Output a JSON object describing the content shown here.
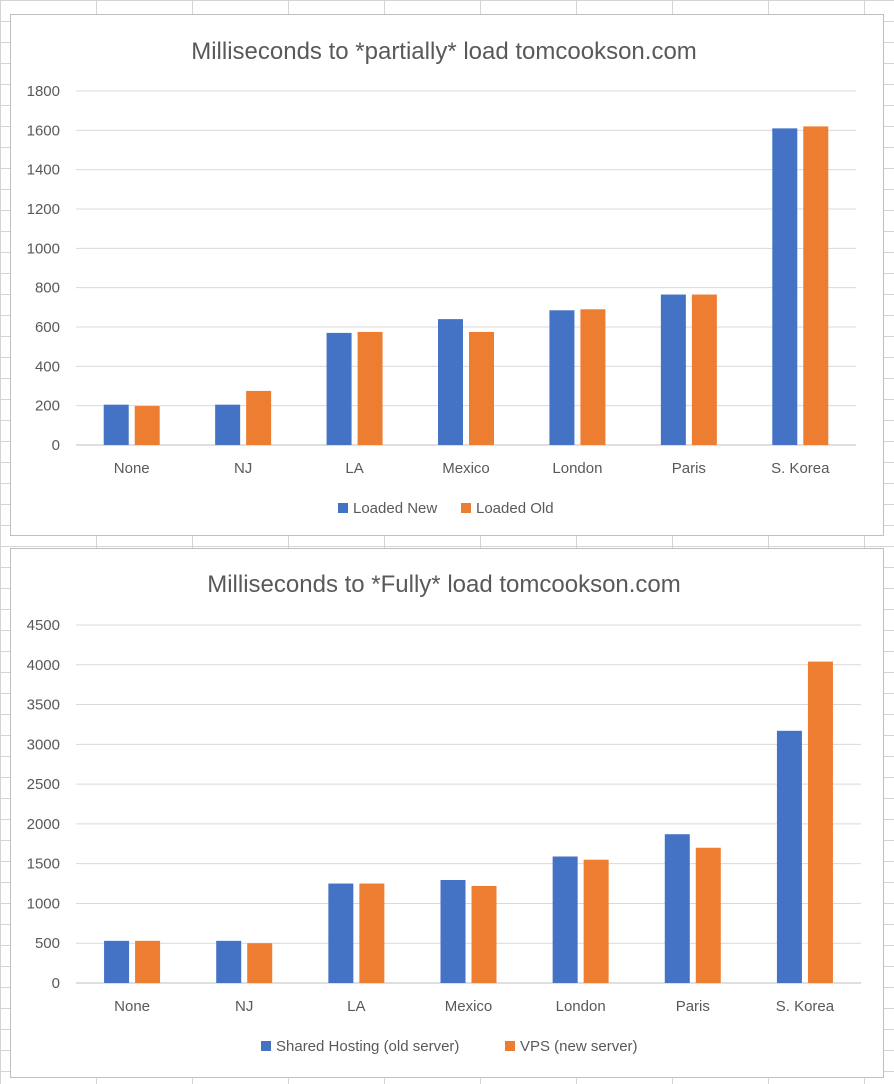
{
  "chart_data": [
    {
      "type": "bar",
      "title": "Milliseconds to *partially* load tomcookson.com",
      "categories": [
        "None",
        "NJ",
        "LA",
        "Mexico",
        "London",
        "Paris",
        "S. Korea"
      ],
      "series": [
        {
          "name": "Loaded New",
          "color": "#4472C4",
          "values": [
            205,
            205,
            570,
            640,
            685,
            765,
            1610
          ]
        },
        {
          "name": "Loaded Old",
          "color": "#ED7D31",
          "values": [
            198,
            275,
            575,
            575,
            690,
            765,
            1620
          ]
        }
      ],
      "ylim": [
        0,
        1800
      ],
      "yticks": [
        0,
        200,
        400,
        600,
        800,
        1000,
        1200,
        1400,
        1600,
        1800
      ],
      "grid": true,
      "legend": "bottom",
      "xlabel": "",
      "ylabel": ""
    },
    {
      "type": "bar",
      "title": "Milliseconds to *Fully* load tomcookson.com",
      "categories": [
        "None",
        "NJ",
        "LA",
        "Mexico",
        "London",
        "Paris",
        "S. Korea"
      ],
      "series": [
        {
          "name": "Shared Hosting (old server)",
          "color": "#4472C4",
          "values": [
            530,
            530,
            1250,
            1295,
            1590,
            1870,
            3170
          ]
        },
        {
          "name": "VPS (new server)",
          "color": "#ED7D31",
          "values": [
            530,
            500,
            1250,
            1220,
            1550,
            1700,
            4040
          ]
        }
      ],
      "ylim": [
        0,
        4500
      ],
      "yticks": [
        0,
        500,
        1000,
        1500,
        2000,
        2500,
        3000,
        3500,
        4000,
        4500
      ],
      "grid": true,
      "legend": "bottom",
      "xlabel": "",
      "ylabel": ""
    }
  ]
}
